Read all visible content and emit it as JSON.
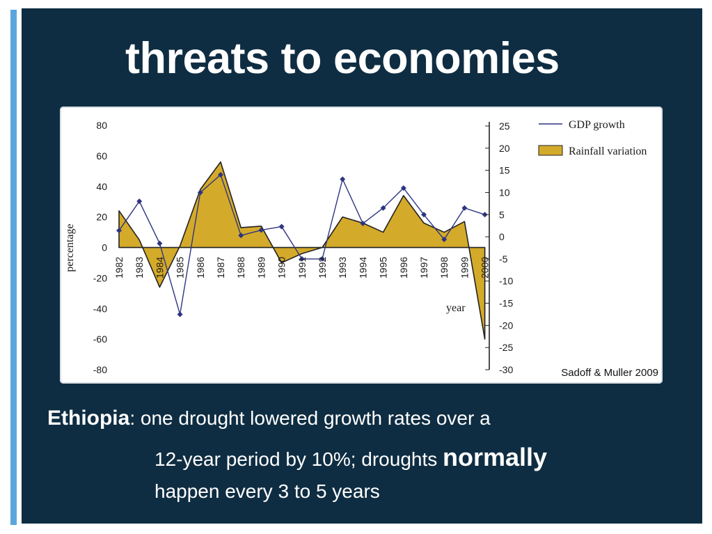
{
  "slide": {
    "title": "threats to economies",
    "source": "Sadoff & Muller 2009",
    "caption": {
      "country": "Ethiopia",
      "line1_rest": ": one drought lowered growth rates over a",
      "line2_pre": "12-year period by 10%; droughts ",
      "line2_emph": "normally",
      "line3": "happen every 3 to 5 years"
    },
    "colors": {
      "background": "#0f2d42",
      "accent": "#5aa6dc",
      "rainfall_fill": "#d4aa2a",
      "gdp_line": "#2e3580"
    }
  },
  "chart_data": {
    "type": "area",
    "categories": [
      "1982",
      "1983",
      "1984",
      "1985",
      "1986",
      "1987",
      "1988",
      "1989",
      "1990",
      "1991",
      "1992",
      "1993",
      "1994",
      "1995",
      "1996",
      "1997",
      "1998",
      "1999",
      "2000"
    ],
    "xlabel": "year",
    "ylabel": "percentage",
    "left_axis": {
      "ticks": [
        80,
        60,
        40,
        20,
        0,
        -20,
        -40,
        -60,
        -80
      ],
      "ylim": [
        -80,
        80
      ]
    },
    "right_axis": {
      "ticks": [
        25,
        20,
        15,
        10,
        5,
        0,
        -5,
        -10,
        -15,
        -20,
        -25,
        -30
      ],
      "ylim": [
        -30,
        25
      ]
    },
    "legend": {
      "position": "top-right",
      "entries": [
        "GDP growth",
        "Rainfall variation"
      ]
    },
    "series": [
      {
        "name": "Rainfall variation",
        "axis": "left",
        "style": "area",
        "values": [
          24,
          5,
          -26,
          1,
          38,
          56,
          13,
          14,
          -10,
          -4,
          0,
          20,
          16,
          10,
          34,
          16,
          10,
          17,
          -60
        ]
      },
      {
        "name": "GDP growth",
        "axis": "right",
        "style": "line-markers",
        "values": [
          1.4,
          8.0,
          -1.5,
          -17.5,
          10.0,
          14.0,
          0.3,
          1.5,
          2.3,
          -5.0,
          -5.0,
          13.0,
          3.0,
          6.5,
          11.0,
          5.0,
          -0.6,
          6.5,
          5.0
        ]
      }
    ]
  }
}
